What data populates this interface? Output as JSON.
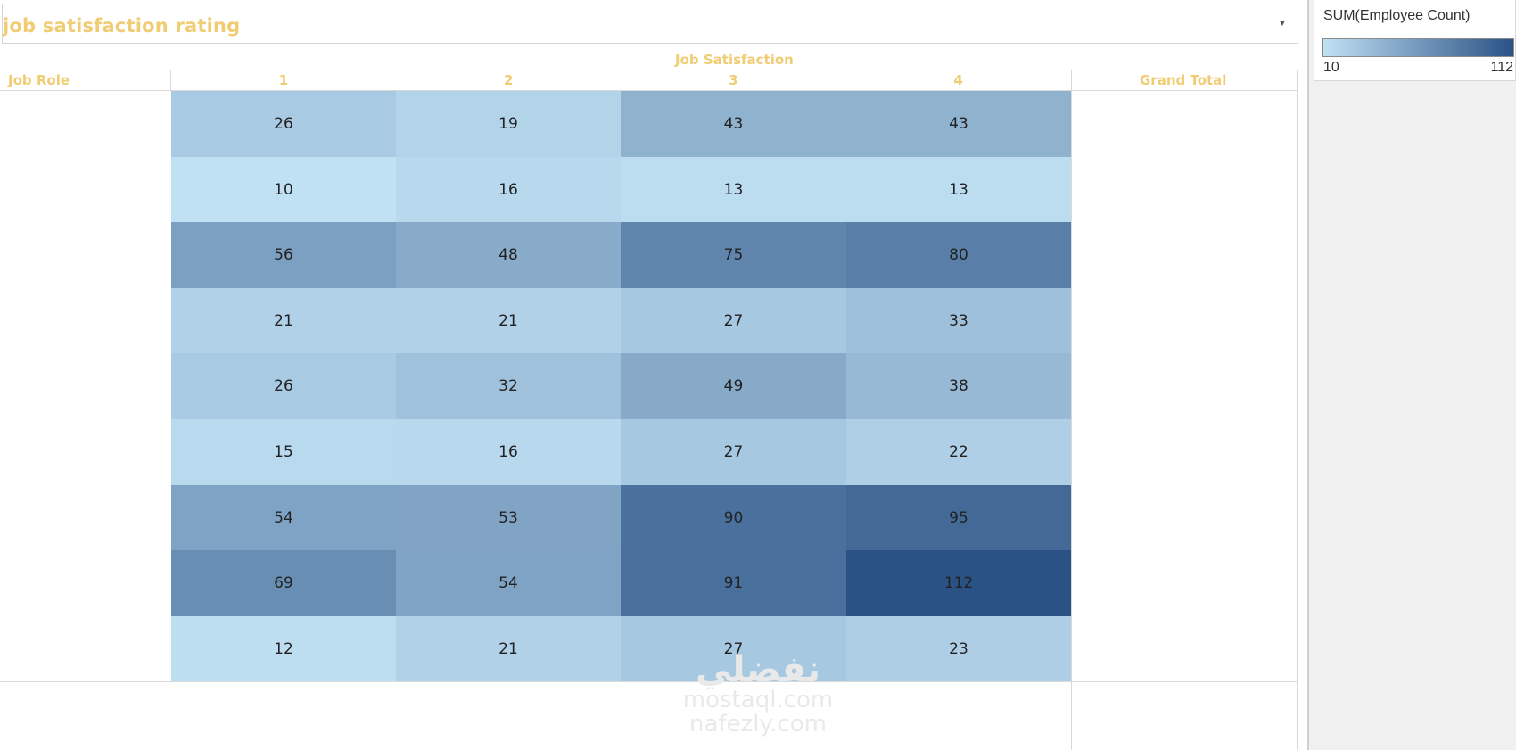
{
  "title": "job satisfaction rating",
  "header": {
    "column_group_label": "Job Satisfaction",
    "row_label": "Job Role",
    "grand_total_label": "Grand Total"
  },
  "legend": {
    "title": "SUM(Employee Count)",
    "min": "10",
    "max": "112",
    "color_low": "#c0e0f3",
    "color_high": "#2a5285"
  },
  "watermark": {
    "arabic": "نفضلي",
    "line1": "mostaql.com",
    "line2": "nafezly.com"
  },
  "chart_data": {
    "type": "heatmap",
    "title": "job satisfaction rating",
    "xlabel": "Job Satisfaction",
    "ylabel": "Job Role",
    "x_categories": [
      "1",
      "2",
      "3",
      "4"
    ],
    "rows": 9,
    "values": [
      [
        26,
        19,
        43,
        43
      ],
      [
        10,
        16,
        13,
        13
      ],
      [
        56,
        48,
        75,
        80
      ],
      [
        21,
        21,
        27,
        33
      ],
      [
        26,
        32,
        49,
        38
      ],
      [
        15,
        16,
        27,
        22
      ],
      [
        54,
        53,
        90,
        95
      ],
      [
        69,
        54,
        91,
        112
      ],
      [
        12,
        21,
        27,
        23
      ]
    ],
    "color_range": [
      10,
      112
    ],
    "legend_title": "SUM(Employee Count)"
  }
}
